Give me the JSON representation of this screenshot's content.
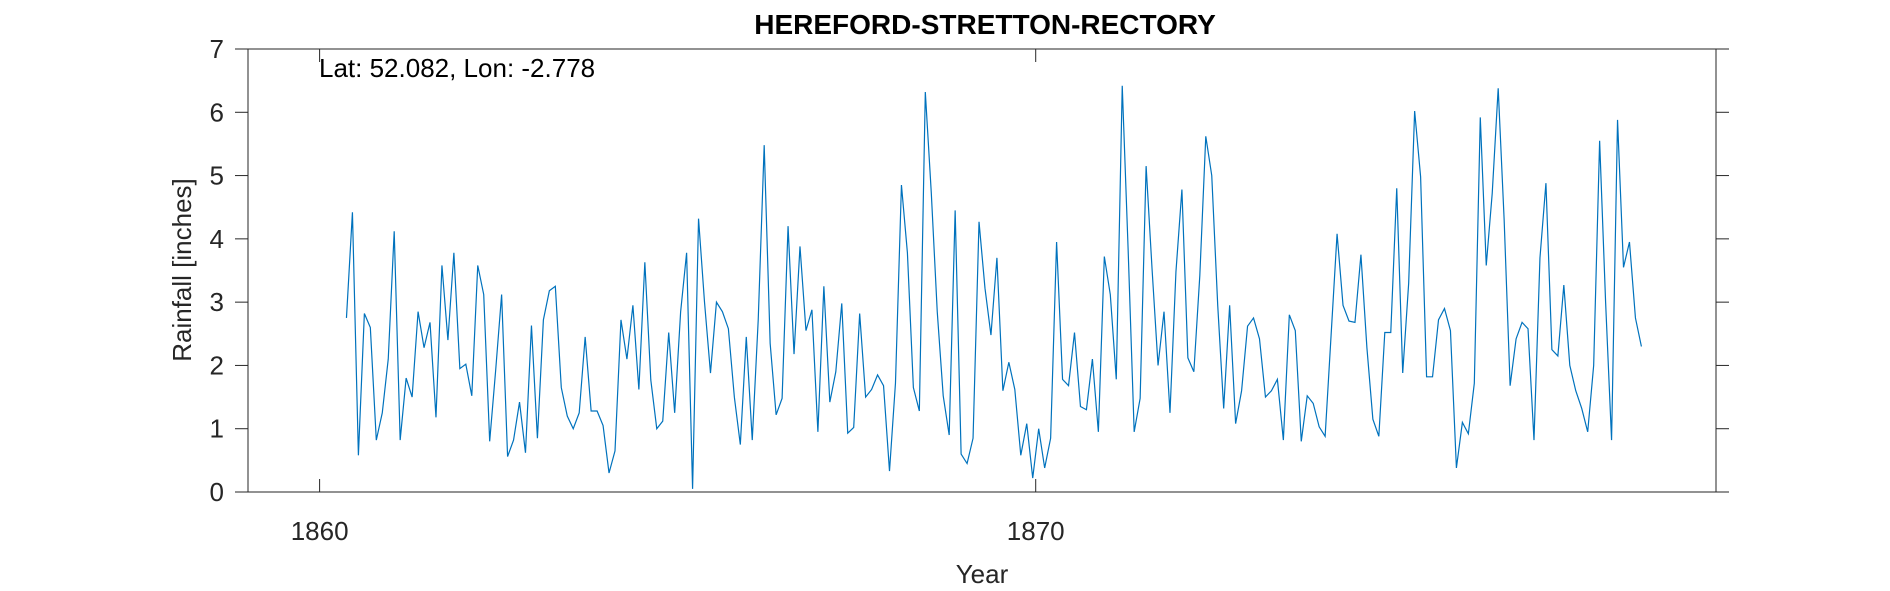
{
  "chart_data": {
    "type": "line",
    "title": "HEREFORD-STRETTON-RECTORY",
    "annotation": "Lat: 52.082, Lon: -2.778",
    "xlabel": "Year",
    "ylabel": "Rainfall [inches]",
    "xlim": [
      1859,
      1879.5
    ],
    "ylim": [
      0,
      7
    ],
    "xticks": [
      1860,
      1870
    ],
    "yticks": [
      0,
      1,
      2,
      3,
      4,
      5,
      6,
      7
    ],
    "grid": false,
    "line_color": "#0072BD",
    "series": [
      {
        "x_start": 1860.375,
        "x_step": 0.08333333,
        "values": [
          2.75,
          4.42,
          0.58,
          2.82,
          2.6,
          0.82,
          1.25,
          2.1,
          4.12,
          0.82,
          1.8,
          1.5,
          2.85,
          2.28,
          2.68,
          1.18,
          3.58,
          2.4,
          3.78,
          1.95,
          2.02,
          1.52,
          3.58,
          3.12,
          0.8,
          1.92,
          3.12,
          0.56,
          0.82,
          1.42,
          0.62,
          2.63,
          0.85,
          2.72,
          3.18,
          3.25,
          1.65,
          1.2,
          1.0,
          1.25,
          2.45,
          1.28,
          1.28,
          1.05,
          0.3,
          0.65,
          2.72,
          2.1,
          2.95,
          1.62,
          3.63,
          1.77,
          1.0,
          1.12,
          2.52,
          1.25,
          2.85,
          3.78,
          0.05,
          4.32,
          3.0,
          1.88,
          3.0,
          2.85,
          2.58,
          1.5,
          0.75,
          2.45,
          0.82,
          2.72,
          5.48,
          2.35,
          1.22,
          1.48,
          4.2,
          2.18,
          3.88,
          2.55,
          2.88,
          0.95,
          3.25,
          1.42,
          1.9,
          2.98,
          0.93,
          1.02,
          2.82,
          1.5,
          1.62,
          1.85,
          1.68,
          0.33,
          1.72,
          4.85,
          3.78,
          1.65,
          1.28,
          6.32,
          4.73,
          2.85,
          1.52,
          0.9,
          4.45,
          0.6,
          0.45,
          0.85,
          4.27,
          3.22,
          2.48,
          3.7,
          1.6,
          2.05,
          1.62,
          0.58,
          1.08,
          0.22,
          1.0,
          0.38,
          0.85,
          3.95,
          1.78,
          1.68,
          2.52,
          1.35,
          1.3,
          2.1,
          0.95,
          3.72,
          3.12,
          1.78,
          6.42,
          3.8,
          0.95,
          1.48,
          5.15,
          3.52,
          2.0,
          2.85,
          1.25,
          3.48,
          4.78,
          2.12,
          1.9,
          3.42,
          5.62,
          5.0,
          2.95,
          1.32,
          2.95,
          1.08,
          1.6,
          2.62,
          2.75,
          2.42,
          1.5,
          1.6,
          1.78,
          0.82,
          2.8,
          2.55,
          0.8,
          1.52,
          1.4,
          1.03,
          0.88,
          2.48,
          4.08,
          2.95,
          2.7,
          2.68,
          3.75,
          2.28,
          1.15,
          0.88,
          2.52,
          2.52,
          4.8,
          1.88,
          3.3,
          6.02,
          4.98,
          1.82,
          1.82,
          2.72,
          2.9,
          2.55,
          0.38,
          1.1,
          0.92,
          1.72,
          5.92,
          3.58,
          4.72,
          6.38,
          4.3,
          1.68,
          2.42,
          2.68,
          2.58,
          0.82,
          3.7,
          4.88,
          2.25,
          2.15,
          3.27,
          2.0,
          1.6,
          1.32,
          0.95,
          2.0,
          5.55,
          3.0,
          0.82,
          5.88,
          3.55,
          3.95,
          2.75,
          2.3
        ]
      }
    ]
  }
}
